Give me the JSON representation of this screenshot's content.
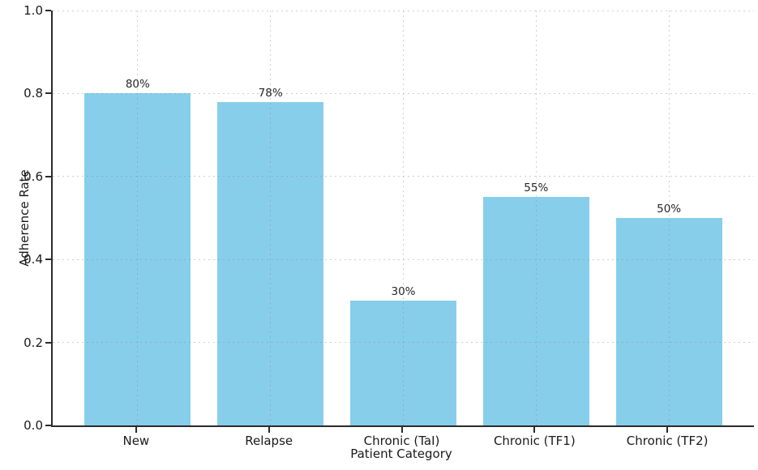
{
  "chart_data": {
    "type": "bar",
    "xlabel": "Patient Category",
    "ylabel": "Adherence Rate",
    "categories": [
      "New",
      "Relapse",
      "Chronic (TaI)",
      "Chronic (TF1)",
      "Chronic (TF2)"
    ],
    "values": [
      0.8,
      0.78,
      0.3,
      0.55,
      0.5
    ],
    "bar_labels": [
      "80%",
      "78%",
      "30%",
      "55%",
      "50%"
    ],
    "ylim": [
      0.0,
      1.0
    ],
    "yticks": [
      0.0,
      0.2,
      0.4,
      0.6,
      0.8,
      1.0
    ],
    "ytick_labels": [
      "0.0",
      "0.2",
      "0.4",
      "0.6",
      "0.8",
      "1.0"
    ],
    "bar_color": "#87CEEB",
    "grid": "dashed-both-axes",
    "legend_position": "none"
  }
}
